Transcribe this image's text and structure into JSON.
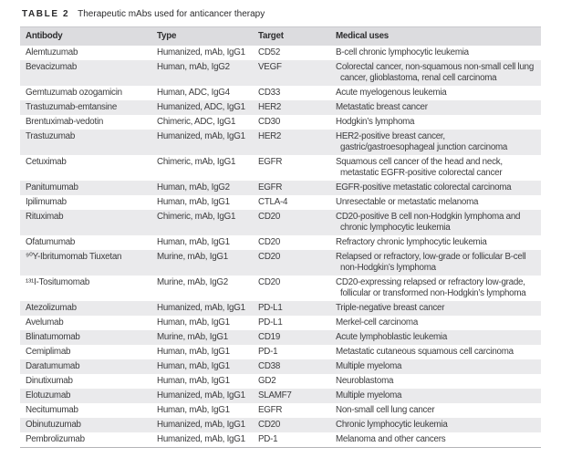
{
  "caption": {
    "label": "TABLE 2",
    "title": "Therapeutic mAbs used for anticancer therapy"
  },
  "columns": [
    "Antibody",
    "Type",
    "Target",
    "Medical uses"
  ],
  "rows": [
    {
      "antibody": "Alemtuzumab",
      "type": "Humanized, mAb, IgG1",
      "target": "CD52",
      "uses": "B-cell chronic lymphocytic leukemia"
    },
    {
      "antibody": "Bevacizumab",
      "type": "Human, mAb, IgG2",
      "target": "VEGF",
      "uses": "Colorectal cancer, non-squamous non-small cell lung cancer, glioblastoma, renal cell carcinoma"
    },
    {
      "antibody": "Gemtuzumab ozogamicin",
      "type": "Human, ADC, IgG4",
      "target": "CD33",
      "uses": "Acute myelogenous leukemia"
    },
    {
      "antibody": "Trastuzumab-emtansine",
      "type": "Humanized, ADC, IgG1",
      "target": "HER2",
      "uses": "Metastatic breast cancer"
    },
    {
      "antibody": "Brentuximab-vedotin",
      "type": "Chimeric, ADC, IgG1",
      "target": "CD30",
      "uses": "Hodgkin’s lymphoma"
    },
    {
      "antibody": "Trastuzumab",
      "type": "Humanized, mAb, IgG1",
      "target": "HER2",
      "uses": "HER2-positive breast cancer, gastric/gastroesophageal junction carcinoma"
    },
    {
      "antibody": "Cetuximab",
      "type": "Chimeric, mAb, IgG1",
      "target": "EGFR",
      "uses": "Squamous cell cancer of the head and neck, metastatic EGFR-positive colorectal cancer"
    },
    {
      "antibody": "Panitumumab",
      "type": "Human, mAb, IgG2",
      "target": "EGFR",
      "uses": "EGFR-positive metastatic colorectal carcinoma"
    },
    {
      "antibody": "Ipilimumab",
      "type": "Human, mAb, IgG1",
      "target": "CTLA-4",
      "uses": "Unresectable or metastatic melanoma"
    },
    {
      "antibody": "Rituximab",
      "type": "Chimeric, mAb, IgG1",
      "target": "CD20",
      "uses": "CD20-positive B cell non-Hodgkin lymphoma and chronic lymphocytic leukemia"
    },
    {
      "antibody": "Ofatumumab",
      "type": "Human, mAb, IgG1",
      "target": "CD20",
      "uses": "Refractory chronic lymphocytic leukemia"
    },
    {
      "antibody": "⁹⁰Y-Ibritumomab Tiuxetan",
      "type": "Murine, mAb, IgG1",
      "target": "CD20",
      "uses": "Relapsed or refractory, low-grade or follicular B-cell non-Hodgkin’s lymphoma"
    },
    {
      "antibody": "¹³¹I-Tositumomab",
      "type": "Murine, mAb, IgG2",
      "target": "CD20",
      "uses": "CD20-expressing relapsed or refractory low-grade, follicular or transformed non-Hodgkin’s lymphoma"
    },
    {
      "antibody": "Atezolizumab",
      "type": "Humanized, mAb, IgG1",
      "target": "PD-L1",
      "uses": "Triple-negative breast cancer"
    },
    {
      "antibody": "Avelumab",
      "type": "Human, mAb, IgG1",
      "target": "PD-L1",
      "uses": "Merkel-cell carcinoma"
    },
    {
      "antibody": "Blinatumomab",
      "type": "Murine, mAb, IgG1",
      "target": "CD19",
      "uses": "Acute lymphoblastic leukemia"
    },
    {
      "antibody": "Cemiplimab",
      "type": "Human, mAb, IgG1",
      "target": "PD-1",
      "uses": "Metastatic cutaneous squamous cell carcinoma"
    },
    {
      "antibody": "Daratumumab",
      "type": "Human, mAb, IgG1",
      "target": "CD38",
      "uses": "Multiple myeloma"
    },
    {
      "antibody": "Dinutixumab",
      "type": "Human, mAb, IgG1",
      "target": "GD2",
      "uses": "Neuroblastoma"
    },
    {
      "antibody": "Elotuzumab",
      "type": "Humanized, mAb, IgG1",
      "target": "SLAMF7",
      "uses": "Multiple myeloma"
    },
    {
      "antibody": "Necitumumab",
      "type": "Human, mAb, IgG1",
      "target": "EGFR",
      "uses": "Non-small cell lung cancer"
    },
    {
      "antibody": "Obinutuzumab",
      "type": "Humanized, mAb, IgG1",
      "target": "CD20",
      "uses": "Chronic lymphocytic leukemia"
    },
    {
      "antibody": "Pembrolizumab",
      "type": "Humanized, mAb, IgG1",
      "target": "PD-1",
      "uses": "Melanoma and other cancers"
    }
  ],
  "colors": {
    "header_bg": "#dcdcdf",
    "stripe_bg": "#eaeaec",
    "text": "#3c3c3e",
    "border": "#b4b4b7",
    "caption_text": "#2b2b2d"
  }
}
